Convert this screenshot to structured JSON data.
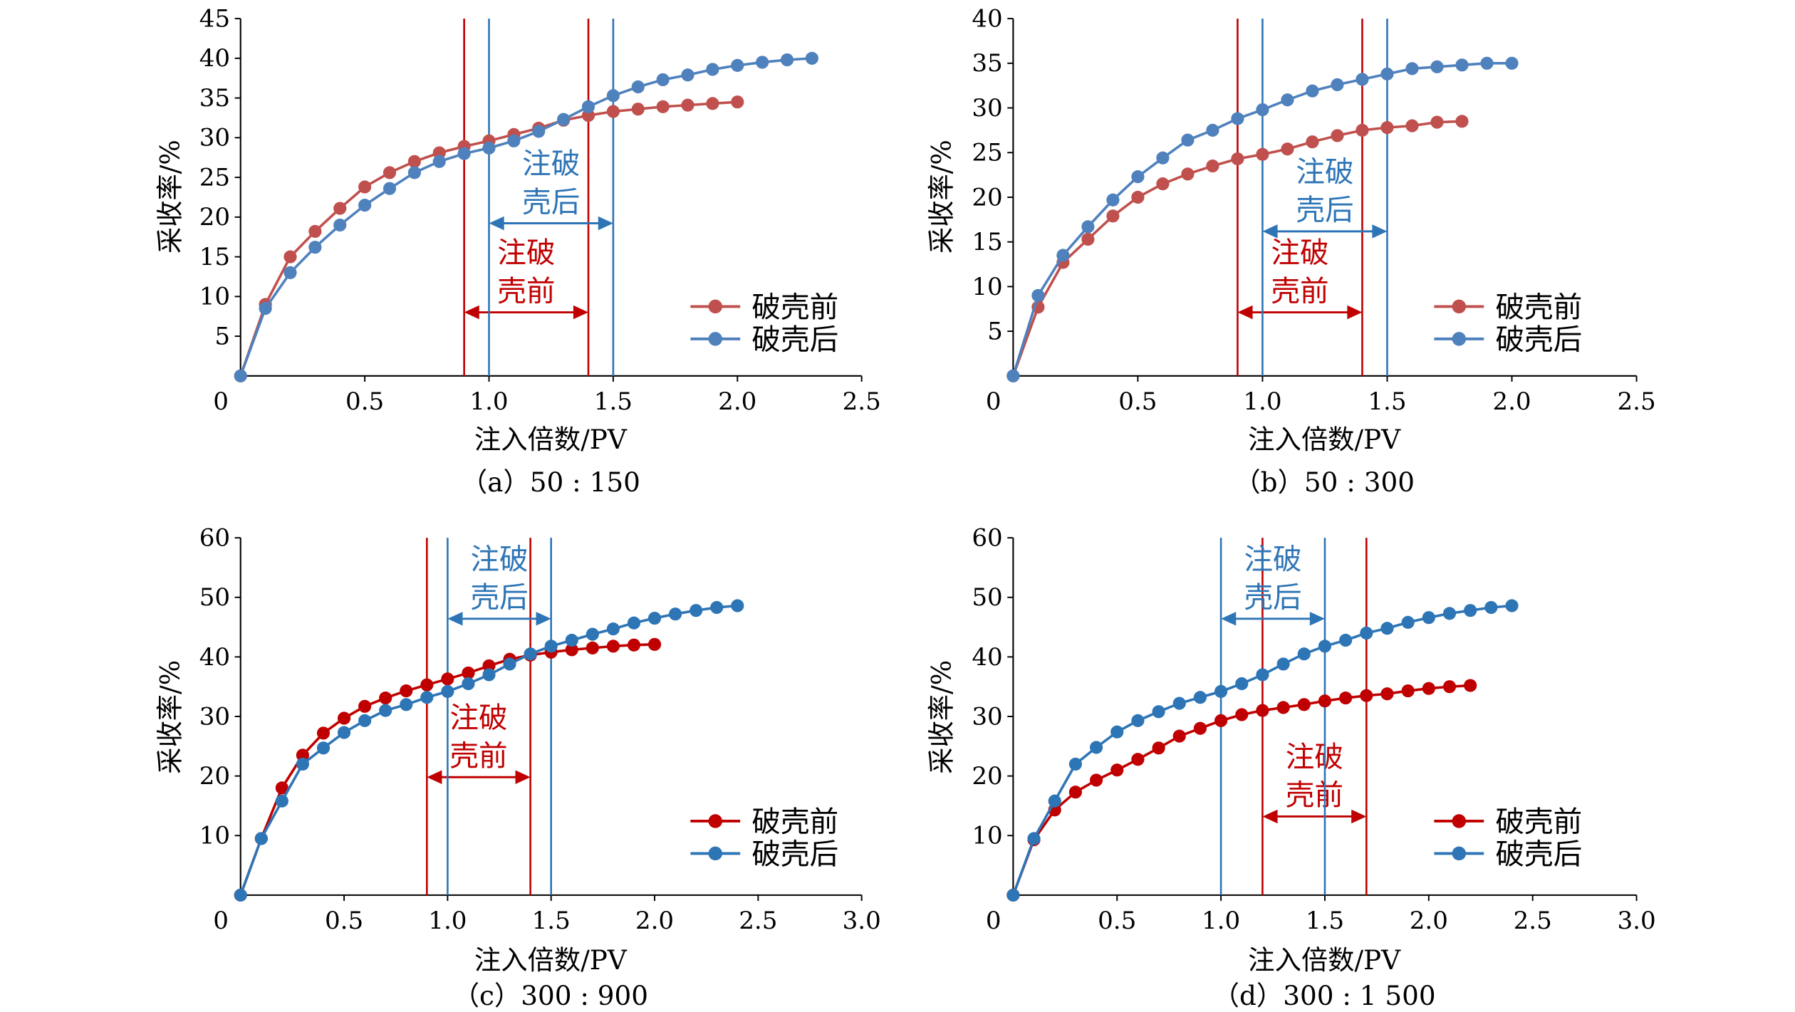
{
  "chart_data": [
    {
      "type": "line",
      "caption": "（a）50 : 150",
      "xlabel": "注入倍数/PV",
      "ylabel": "采收率/%",
      "xlim": [
        0,
        2.5
      ],
      "ylim": [
        0,
        45
      ],
      "x_tick_labels": [
        "0",
        "0.5",
        "1.0",
        "1.5",
        "2.0",
        "2.5"
      ],
      "y_tick_labels": [
        "5",
        "10",
        "15",
        "20",
        "25",
        "30",
        "35",
        "40",
        "45"
      ],
      "grid": false,
      "legend_position": "bottom-right",
      "series": [
        {
          "name": "破壳前",
          "color": "#C0504D",
          "x": [
            0,
            0.1,
            0.2,
            0.3,
            0.4,
            0.5,
            0.6,
            0.7,
            0.8,
            0.9,
            1.0,
            1.1,
            1.2,
            1.3,
            1.4,
            1.5,
            1.6,
            1.7,
            1.8,
            1.9,
            2.0
          ],
          "y": [
            0,
            9.0,
            15.0,
            18.2,
            21.1,
            23.8,
            25.6,
            27.0,
            28.1,
            28.9,
            29.6,
            30.4,
            31.2,
            32.2,
            32.8,
            33.3,
            33.6,
            33.9,
            34.1,
            34.3,
            34.5
          ]
        },
        {
          "name": "破壳后",
          "color": "#4F81BD",
          "x": [
            0,
            0.1,
            0.2,
            0.3,
            0.4,
            0.5,
            0.6,
            0.7,
            0.8,
            0.9,
            1.0,
            1.1,
            1.2,
            1.3,
            1.4,
            1.5,
            1.6,
            1.7,
            1.8,
            1.9,
            2.0,
            2.1,
            2.2,
            2.3
          ],
          "y": [
            0,
            8.5,
            13.0,
            16.2,
            19.0,
            21.5,
            23.6,
            25.6,
            27.0,
            28.0,
            28.7,
            29.6,
            30.8,
            32.3,
            33.9,
            35.3,
            36.4,
            37.3,
            37.9,
            38.6,
            39.1,
            39.5,
            39.8,
            40.0
          ]
        }
      ],
      "injection_windows": [
        {
          "label_lines": [
            "注破",
            "壳前"
          ],
          "start": 0.9,
          "end": 1.4,
          "color": "#C00000"
        },
        {
          "label_lines": [
            "注破",
            "壳后"
          ],
          "start": 1.0,
          "end": 1.5,
          "color": "#2E75B6"
        }
      ]
    },
    {
      "type": "line",
      "caption": "（b）50 : 300",
      "xlabel": "注入倍数/PV",
      "ylabel": "采收率/%",
      "xlim": [
        0,
        2.5
      ],
      "ylim": [
        0,
        40
      ],
      "x_tick_labels": [
        "0",
        "0.5",
        "1.0",
        "1.5",
        "2.0",
        "2.5"
      ],
      "y_tick_labels": [
        "5",
        "10",
        "15",
        "20",
        "25",
        "30",
        "35",
        "40"
      ],
      "grid": false,
      "legend_position": "bottom-right",
      "series": [
        {
          "name": "破壳前",
          "color": "#C0504D",
          "x": [
            0,
            0.1,
            0.2,
            0.3,
            0.4,
            0.5,
            0.6,
            0.7,
            0.8,
            0.9,
            1.0,
            1.1,
            1.2,
            1.3,
            1.4,
            1.5,
            1.6,
            1.7,
            1.8
          ],
          "y": [
            0,
            7.7,
            12.7,
            15.3,
            17.9,
            20.0,
            21.5,
            22.6,
            23.5,
            24.3,
            24.8,
            25.4,
            26.2,
            26.9,
            27.5,
            27.8,
            28.0,
            28.4,
            28.5
          ]
        },
        {
          "name": "破壳后",
          "color": "#4F81BD",
          "x": [
            0,
            0.1,
            0.2,
            0.3,
            0.4,
            0.5,
            0.6,
            0.7,
            0.8,
            0.9,
            1.0,
            1.1,
            1.2,
            1.3,
            1.4,
            1.5,
            1.6,
            1.7,
            1.8,
            1.9,
            2.0
          ],
          "y": [
            0,
            9.0,
            13.5,
            16.7,
            19.7,
            22.3,
            24.4,
            26.4,
            27.5,
            28.8,
            29.8,
            30.9,
            31.9,
            32.6,
            33.2,
            33.8,
            34.4,
            34.6,
            34.8,
            35.0,
            35.0
          ]
        }
      ],
      "injection_windows": [
        {
          "label_lines": [
            "注破",
            "壳前"
          ],
          "start": 0.9,
          "end": 1.4,
          "color": "#C00000"
        },
        {
          "label_lines": [
            "注破",
            "壳后"
          ],
          "start": 1.0,
          "end": 1.5,
          "color": "#2E75B6"
        }
      ]
    },
    {
      "type": "line",
      "caption": "（c）300 : 900",
      "xlabel": "注入倍数/PV",
      "ylabel": "采收率/%",
      "xlim": [
        0,
        3.0
      ],
      "ylim": [
        0,
        60
      ],
      "x_tick_labels": [
        "0",
        "0.5",
        "1.0",
        "1.5",
        "2.0",
        "2.5",
        "3.0"
      ],
      "y_tick_labels": [
        "10",
        "20",
        "30",
        "40",
        "50",
        "60"
      ],
      "grid": false,
      "legend_position": "bottom-right",
      "series": [
        {
          "name": "破壳前",
          "color": "#C00000",
          "x": [
            0,
            0.1,
            0.2,
            0.3,
            0.4,
            0.5,
            0.6,
            0.7,
            0.8,
            0.9,
            1.0,
            1.1,
            1.2,
            1.3,
            1.4,
            1.5,
            1.6,
            1.7,
            1.8,
            1.9,
            2.0
          ],
          "y": [
            0,
            9.5,
            18.0,
            23.5,
            27.2,
            29.7,
            31.7,
            33.1,
            34.3,
            35.3,
            36.3,
            37.3,
            38.5,
            39.6,
            40.3,
            40.8,
            41.2,
            41.5,
            41.8,
            42.0,
            42.1
          ]
        },
        {
          "name": "破壳后",
          "color": "#2E75B6",
          "x": [
            0,
            0.1,
            0.2,
            0.3,
            0.4,
            0.5,
            0.6,
            0.7,
            0.8,
            0.9,
            1.0,
            1.1,
            1.2,
            1.3,
            1.4,
            1.5,
            1.6,
            1.7,
            1.8,
            1.9,
            2.0,
            2.1,
            2.2,
            2.3,
            2.4
          ],
          "y": [
            0,
            9.5,
            15.8,
            22.0,
            24.7,
            27.3,
            29.3,
            31.0,
            32.0,
            33.2,
            34.2,
            35.5,
            37.0,
            38.8,
            40.5,
            41.8,
            42.8,
            43.8,
            44.7,
            45.7,
            46.5,
            47.2,
            47.8,
            48.3,
            48.6
          ]
        }
      ],
      "injection_windows": [
        {
          "label_lines": [
            "注破",
            "壳前"
          ],
          "start": 0.9,
          "end": 1.4,
          "color": "#C00000"
        },
        {
          "label_lines": [
            "注破",
            "壳后"
          ],
          "start": 1.0,
          "end": 1.5,
          "color": "#2E75B6"
        }
      ]
    },
    {
      "type": "line",
      "caption": "（d）300 : 1 500",
      "xlabel": "注入倍数/PV",
      "ylabel": "采收率/%",
      "xlim": [
        0,
        3.0
      ],
      "ylim": [
        0,
        60
      ],
      "x_tick_labels": [
        "0",
        "0.5",
        "1.0",
        "1.5",
        "2.0",
        "2.5",
        "3.0"
      ],
      "y_tick_labels": [
        "10",
        "20",
        "30",
        "40",
        "50",
        "60"
      ],
      "grid": false,
      "legend_position": "bottom-right",
      "series": [
        {
          "name": "破壳前",
          "color": "#C00000",
          "x": [
            0,
            0.1,
            0.2,
            0.3,
            0.4,
            0.5,
            0.6,
            0.7,
            0.8,
            0.9,
            1.0,
            1.1,
            1.2,
            1.3,
            1.4,
            1.5,
            1.6,
            1.7,
            1.8,
            1.9,
            2.0,
            2.1,
            2.2
          ],
          "y": [
            0,
            9.3,
            14.3,
            17.3,
            19.3,
            21.0,
            22.8,
            24.7,
            26.7,
            28.0,
            29.3,
            30.3,
            31.0,
            31.5,
            32.0,
            32.6,
            33.1,
            33.5,
            33.8,
            34.3,
            34.7,
            35.0,
            35.2
          ]
        },
        {
          "name": "破壳后",
          "color": "#2E75B6",
          "x": [
            0,
            0.1,
            0.2,
            0.3,
            0.4,
            0.5,
            0.6,
            0.7,
            0.8,
            0.9,
            1.0,
            1.1,
            1.2,
            1.3,
            1.4,
            1.5,
            1.6,
            1.7,
            1.8,
            1.9,
            2.0,
            2.1,
            2.2,
            2.3,
            2.4
          ],
          "y": [
            0,
            9.5,
            15.8,
            22.0,
            24.8,
            27.4,
            29.3,
            30.8,
            32.2,
            33.2,
            34.2,
            35.5,
            37.0,
            38.8,
            40.5,
            41.8,
            42.8,
            44.0,
            44.8,
            45.8,
            46.6,
            47.3,
            47.8,
            48.3,
            48.6
          ]
        }
      ],
      "injection_windows": [
        {
          "label_lines": [
            "注破",
            "壳前"
          ],
          "start": 1.2,
          "end": 1.7,
          "color": "#C00000"
        },
        {
          "label_lines": [
            "注破",
            "壳后"
          ],
          "start": 1.0,
          "end": 1.5,
          "color": "#2E75B6"
        }
      ]
    }
  ]
}
